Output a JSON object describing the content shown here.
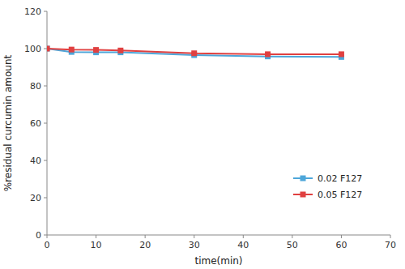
{
  "chart_data": {
    "type": "line",
    "xlabel": "time(min)",
    "ylabel": "%residual curcumin amount",
    "x": [
      0,
      5,
      10,
      15,
      30,
      45,
      60
    ],
    "series": [
      {
        "name": "0.02 F127",
        "color": "#4da6d9",
        "marker": "square",
        "values": [
          100,
          98.2,
          98.0,
          98.0,
          96.5,
          95.8,
          95.5
        ]
      },
      {
        "name": "0.05 F127",
        "color": "#e04040",
        "marker": "square",
        "values": [
          100,
          99.5,
          99.3,
          99.0,
          97.5,
          97.0,
          97.0
        ]
      }
    ],
    "xlim": [
      0,
      70
    ],
    "ylim": [
      0,
      120
    ],
    "xticks": [
      0,
      10,
      20,
      30,
      40,
      50,
      60,
      70
    ],
    "yticks": [
      0,
      20,
      40,
      60,
      80,
      100,
      120
    ],
    "grid": false,
    "legend": "lower right"
  }
}
